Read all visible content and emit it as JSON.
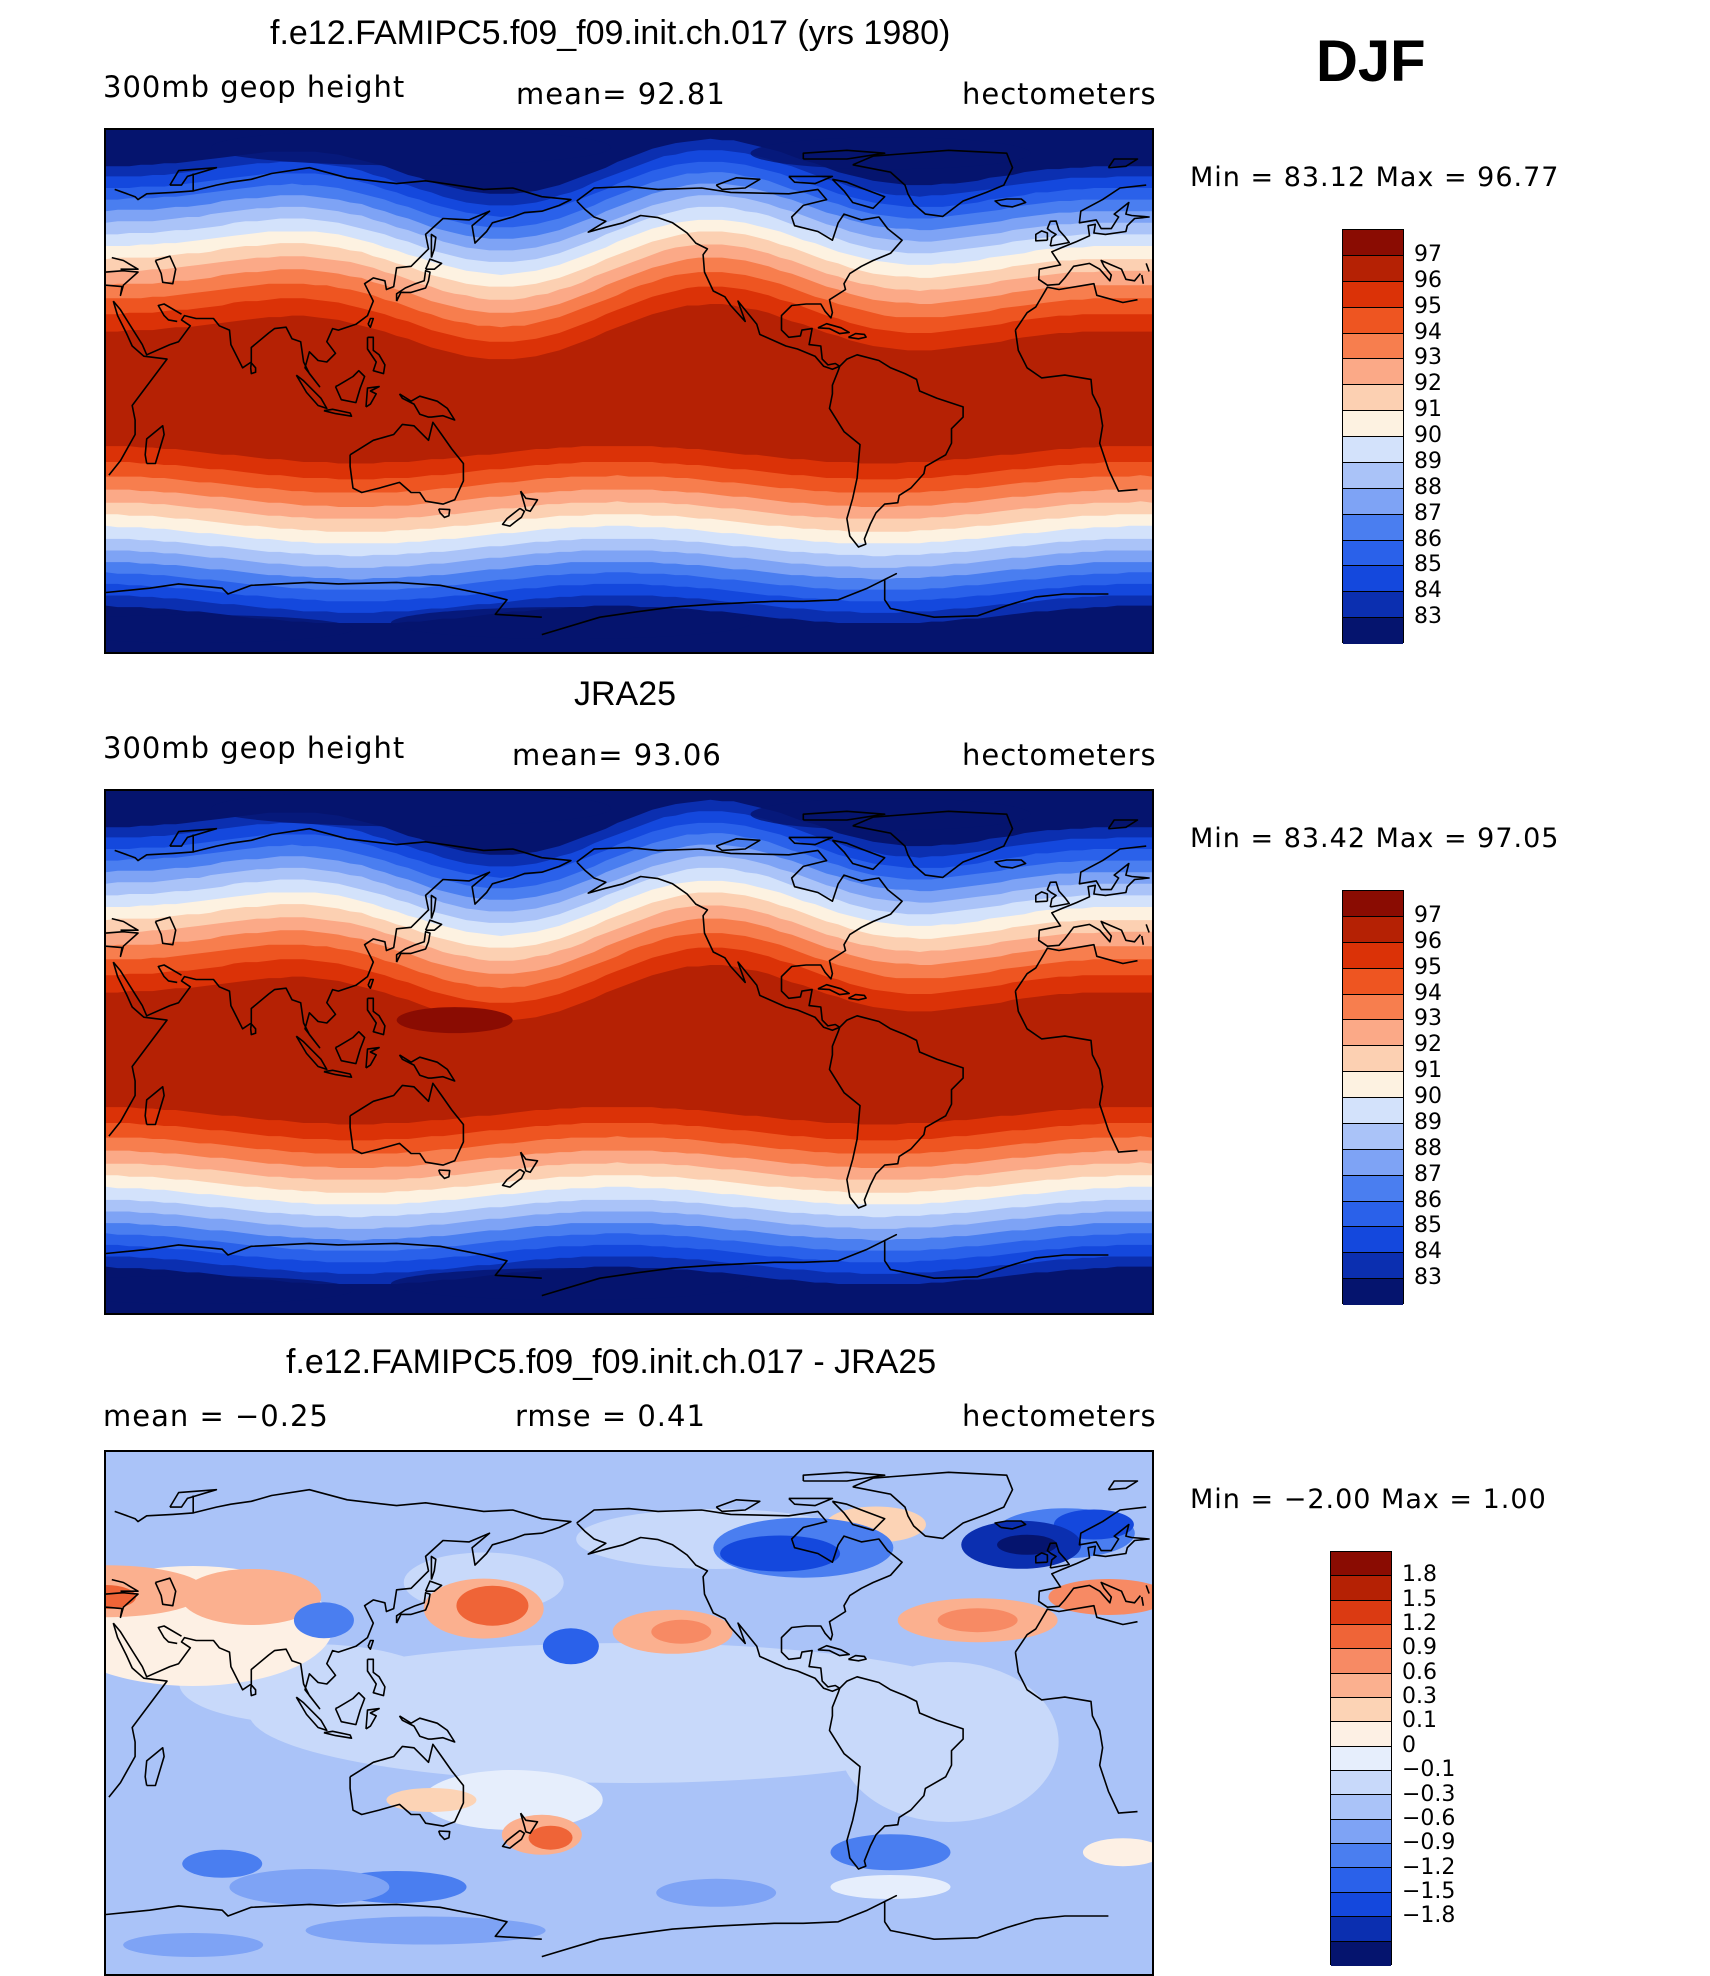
{
  "figure": {
    "season": "DJF",
    "panels": [
      {
        "title": "f.e12.FAMIPC5.f09_f09.init.ch.017 (yrs 1980)",
        "left_label": "300mb geop height",
        "center_label": "mean=  92.81",
        "right_label": "hectometers",
        "minmax": "Min =   83.12 Max =   96.77",
        "kind": "field",
        "colorbar_labels": [
          "97",
          "96",
          "95",
          "94",
          "93",
          "92",
          "91",
          "90",
          "89",
          "88",
          "87",
          "86",
          "85",
          "84",
          "83"
        ]
      },
      {
        "title": "JRA25",
        "left_label": "300mb geop height",
        "center_label": "mean=  93.06",
        "right_label": "hectometers",
        "minmax": "Min =   83.42 Max =   97.05",
        "kind": "field",
        "colorbar_labels": [
          "97",
          "96",
          "95",
          "94",
          "93",
          "92",
          "91",
          "90",
          "89",
          "88",
          "87",
          "86",
          "85",
          "84",
          "83"
        ]
      },
      {
        "title": "f.e12.FAMIPC5.f09_f09.init.ch.017 - JRA25",
        "left_label": "mean =   −0.25",
        "center_label": "rmse =    0.41",
        "right_label": "hectometers",
        "minmax": "Min =   −2.00 Max =     1.00",
        "kind": "diff",
        "colorbar_labels": [
          "1.8",
          "1.5",
          "1.2",
          "0.9",
          "0.6",
          "0.3",
          "0.1",
          "0",
          "−0.1",
          "−0.3",
          "−0.6",
          "−0.9",
          "−1.2",
          "−1.5",
          "−1.8"
        ]
      }
    ],
    "colors": {
      "field_palette": [
        "#05146e",
        "#0b2fb0",
        "#1448dd",
        "#2a61ea",
        "#4a7ef0",
        "#7ea3f5",
        "#aac3f8",
        "#d3e2fb",
        "#fdf2e1",
        "#fcd0b2",
        "#fba987",
        "#f77e4e",
        "#ee5521",
        "#db3207",
        "#b52104",
        "#8a0c02"
      ],
      "diff_palette": [
        "#05146e",
        "#0b2fb0",
        "#1448dd",
        "#2a61ea",
        "#4a7ef0",
        "#7ea3f5",
        "#aac3f8",
        "#c8d9fa",
        "#e6eefc",
        "#fdf0e4",
        "#fcd3b5",
        "#fbb08f",
        "#f78a64",
        "#ef6437",
        "#db3a12",
        "#b52104",
        "#8a0c02"
      ]
    }
  }
}
